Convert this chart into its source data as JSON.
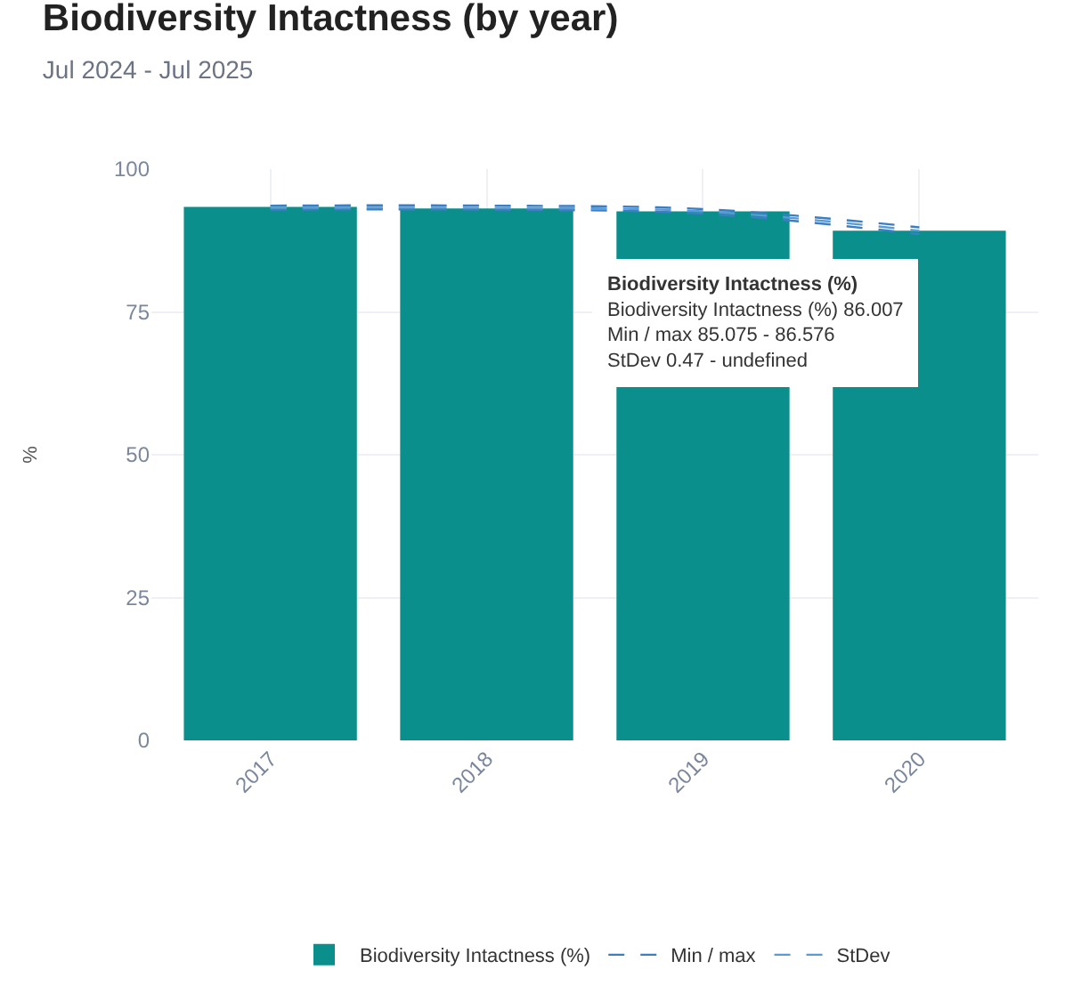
{
  "chart_data": {
    "type": "bar",
    "title": "Biodiversity Intactness (by year)",
    "subtitle": "Jul 2024 - Jul 2025",
    "ylabel": "%",
    "categories": [
      "2017",
      "2018",
      "2019",
      "2020"
    ],
    "series": [
      {
        "name": "Biodiversity Intactness (%)",
        "color": "#0b8f8c",
        "values": [
          93.4,
          93.1,
          92.6,
          89.2
        ]
      },
      {
        "name": "Min / max",
        "type": "line",
        "color": "#3a7fc4",
        "values": [
          93.6,
          93.6,
          93.0,
          89.8
        ],
        "line_style": "dashed"
      },
      {
        "type": "line",
        "color": "#3a7fc4",
        "values": [
          92.9,
          92.9,
          92.2,
          88.6
        ],
        "line_style": "dashed"
      },
      {
        "name": "StDev",
        "type": "line",
        "color": "#5b9bd5",
        "values": [
          93.2,
          93.2,
          92.6,
          89.2
        ],
        "line_style": "dashed"
      }
    ],
    "ylim": [
      0,
      100
    ],
    "yticks": [
      0,
      25,
      50,
      75,
      100
    ],
    "grid": true,
    "legend": "bottom",
    "annotations": [
      "Biodiversity Intactness (%)",
      "Biodiversity Intactness (%) 86.007",
      "Min / max 85.075 - 86.576",
      "StDev 0.47 - undefined"
    ]
  }
}
